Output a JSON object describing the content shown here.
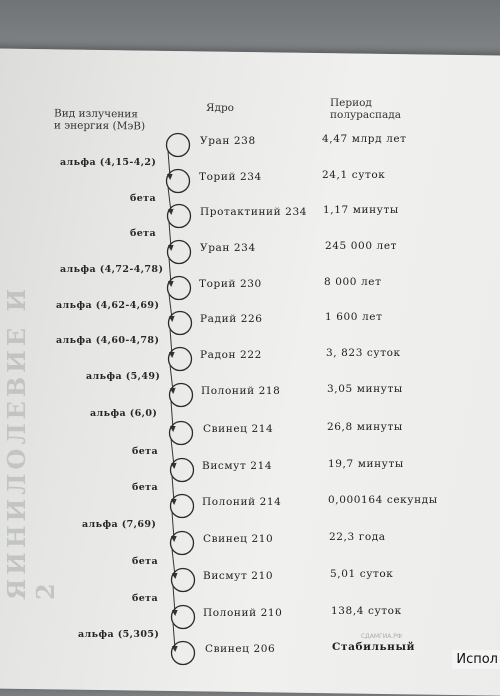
{
  "headers": {
    "emission": "Вид излучения\nи энергия (МэВ)",
    "nucleus": "Ядро",
    "halflife": "Период\nполураспада"
  },
  "nuclei": [
    {
      "name": "Уран 238",
      "halflife": "4,47 млрд лет"
    },
    {
      "name": "Торий 234",
      "halflife": "24,1 суток"
    },
    {
      "name": "Протактиний 234",
      "halflife": "1,17 минуты"
    },
    {
      "name": "Уран 234",
      "halflife": "245 000 лет"
    },
    {
      "name": "Торий 230",
      "halflife": "8 000 лет"
    },
    {
      "name": "Радий 226",
      "halflife": "1 600 лет"
    },
    {
      "name": "Радон 222",
      "halflife": "3, 823 суток"
    },
    {
      "name": "Полоний 218",
      "halflife": "3,05 минуты"
    },
    {
      "name": "Свинец 214",
      "halflife": "26,8 минуты"
    },
    {
      "name": "Висмут 214",
      "halflife": "19,7 минуты"
    },
    {
      "name": "Полоний 214",
      "halflife": "0,000164 секунды"
    },
    {
      "name": "Свинец 210",
      "halflife": "22,3 года"
    },
    {
      "name": "Висмут 210",
      "halflife": "5,01 суток"
    },
    {
      "name": "Полоний 210",
      "halflife": "138,4 суток"
    },
    {
      "name": "Свинец 206",
      "halflife": "Стабильный"
    }
  ],
  "transitions": [
    "альфа (4,15-4,2)",
    "бета",
    "бета",
    "альфа (4,72-4,78)",
    "альфа (4,62-4,69)",
    "альфа (4,60-4,78)",
    "альфа (5,49)",
    "альфа (6,0)",
    "бета",
    "бета",
    "альфа (7,69)",
    "бета",
    "бета",
    "альфа (5,305)"
  ],
  "watermark": "СДАМГИА.РФ",
  "bleed_text": "ЯИНИЛОЛЕВИЕ И 2",
  "cutoff_text": "Испол"
}
